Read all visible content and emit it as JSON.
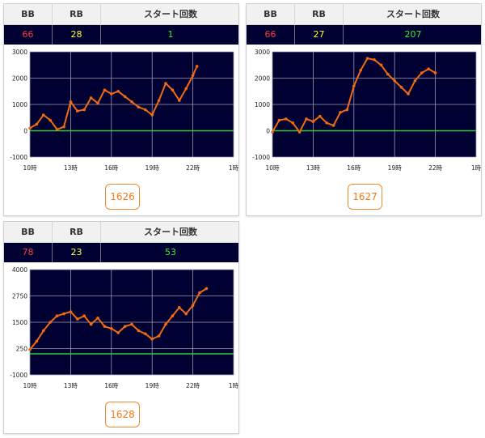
{
  "headers": {
    "bb": "BB",
    "rb": "RB",
    "start": "スタート回数"
  },
  "time_ticks": [
    "10時",
    "13時",
    "16時",
    "19時",
    "22時",
    "1時"
  ],
  "colors": {
    "plot_bg": "#000033",
    "line": "#f26b12",
    "zero_line": "#33cc33",
    "grid": "#9a9ab0"
  },
  "machines": [
    {
      "bb": "66",
      "rb": "28",
      "start": "1",
      "id": "1626",
      "chart_data": {
        "type": "line",
        "ylim": [
          -1000,
          3000
        ],
        "y_ticks": [
          "3000",
          "2000",
          "1000",
          "0",
          "-1000"
        ],
        "x_hours": [
          10,
          10.5,
          11,
          11.5,
          12,
          12.5,
          13,
          13.5,
          14,
          14.5,
          15,
          15.5,
          16,
          16.5,
          17,
          17.5,
          18,
          18.5,
          19,
          19.5,
          20,
          20.5,
          21,
          21.5,
          22,
          22.3
        ],
        "values": [
          100,
          250,
          600,
          400,
          50,
          150,
          1100,
          750,
          800,
          1250,
          1050,
          1550,
          1400,
          1500,
          1300,
          1100,
          900,
          800,
          600,
          1150,
          1800,
          1550,
          1150,
          1600,
          2100,
          2450
        ]
      }
    },
    {
      "bb": "66",
      "rb": "27",
      "start": "207",
      "id": "1627",
      "chart_data": {
        "type": "line",
        "ylim": [
          -1000,
          3000
        ],
        "y_ticks": [
          "3000",
          "2000",
          "1000",
          "0",
          "-1000"
        ],
        "x_hours": [
          10,
          10.5,
          11,
          11.5,
          12,
          12.5,
          13,
          13.5,
          14,
          14.5,
          15,
          15.5,
          16,
          16.5,
          17,
          17.5,
          18,
          18.5,
          19,
          19.5,
          20,
          20.5,
          21,
          21.5,
          22
        ],
        "values": [
          -50,
          400,
          450,
          300,
          -50,
          450,
          350,
          550,
          300,
          200,
          700,
          800,
          1700,
          2300,
          2750,
          2700,
          2500,
          2150,
          1900,
          1650,
          1400,
          1900,
          2200,
          2350,
          2200
        ]
      }
    },
    {
      "bb": "78",
      "rb": "23",
      "start": "53",
      "id": "1628",
      "chart_data": {
        "type": "line",
        "ylim": [
          -1000,
          4000
        ],
        "y_ticks": [
          "4000",
          "2750",
          "1500",
          "250",
          "-1000"
        ],
        "x_hours": [
          10,
          10.5,
          11,
          11.5,
          12,
          12.5,
          13,
          13.5,
          14,
          14.5,
          15,
          15.5,
          16,
          16.5,
          17,
          17.5,
          18,
          18.5,
          19,
          19.5,
          20,
          20.5,
          21,
          21.5,
          22,
          22.5,
          23
        ],
        "values": [
          200,
          600,
          1100,
          1500,
          1800,
          1900,
          2000,
          1650,
          1800,
          1400,
          1700,
          1300,
          1200,
          1000,
          1300,
          1400,
          1100,
          950,
          700,
          850,
          1400,
          1800,
          2200,
          1900,
          2300,
          2900,
          3100
        ]
      }
    }
  ]
}
